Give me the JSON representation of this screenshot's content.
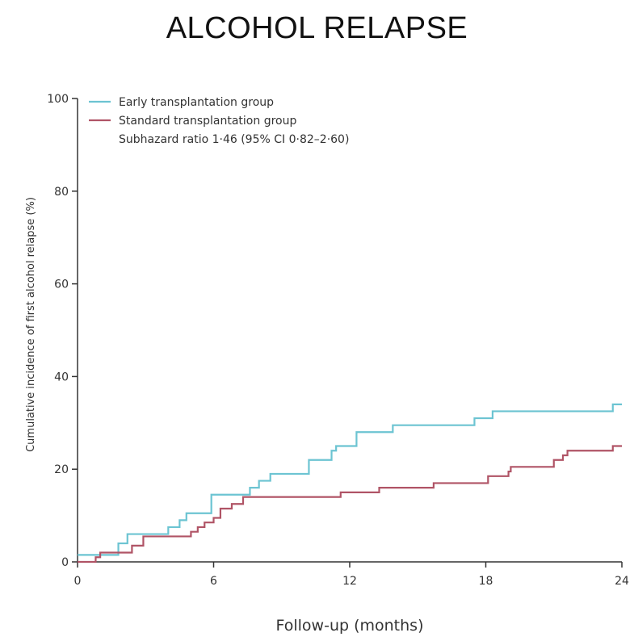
{
  "chart_data": {
    "type": "line",
    "title": "ALCOHOL RELAPSE",
    "xlabel": "Follow-up (months)",
    "ylabel": "Cumulative incidence of first alcohol relapse (%)",
    "xlim": [
      0,
      24
    ],
    "ylim": [
      0,
      100
    ],
    "x_ticks": [
      "0",
      "6",
      "12",
      "18",
      "24"
    ],
    "y_ticks": [
      "0",
      "20",
      "40",
      "60",
      "80",
      "100"
    ],
    "grid": false,
    "legend_position": "top-left",
    "annotation": "Subhazard ratio 1·46 (95% CI 0·82–2·60)",
    "series": [
      {
        "name": "Early transplantation group",
        "color": "#6cc4d2",
        "step": true,
        "points": [
          [
            0,
            1.5
          ],
          [
            1.8,
            1.5
          ],
          [
            1.8,
            4
          ],
          [
            2.2,
            6
          ],
          [
            3.9,
            6
          ],
          [
            4,
            7.5
          ],
          [
            4.4,
            7.5
          ],
          [
            4.5,
            9
          ],
          [
            4.8,
            10.5
          ],
          [
            5.8,
            10.5
          ],
          [
            5.9,
            14.5
          ],
          [
            7.5,
            14.5
          ],
          [
            7.6,
            16
          ],
          [
            7.9,
            16
          ],
          [
            8.0,
            17.5
          ],
          [
            8.4,
            17.5
          ],
          [
            8.5,
            19
          ],
          [
            10,
            19
          ],
          [
            10.2,
            22
          ],
          [
            11.0,
            22
          ],
          [
            11.2,
            24
          ],
          [
            11.4,
            25
          ],
          [
            11.9,
            25
          ],
          [
            12.3,
            28
          ],
          [
            13.8,
            28
          ],
          [
            13.9,
            29.5
          ],
          [
            17.3,
            29.5
          ],
          [
            17.5,
            31
          ],
          [
            18.1,
            31
          ],
          [
            18.3,
            32.5
          ],
          [
            23.5,
            32.5
          ],
          [
            23.6,
            34
          ],
          [
            24,
            34
          ]
        ]
      },
      {
        "name": "Standard transplantation group",
        "color": "#b05466",
        "step": true,
        "points": [
          [
            0,
            0
          ],
          [
            0.7,
            0
          ],
          [
            0.8,
            1
          ],
          [
            1.0,
            2
          ],
          [
            2.3,
            2
          ],
          [
            2.4,
            3.5
          ],
          [
            2.8,
            3.5
          ],
          [
            2.9,
            5.5
          ],
          [
            4.9,
            5.5
          ],
          [
            5.0,
            6.5
          ],
          [
            5.3,
            7.5
          ],
          [
            5.6,
            8.5
          ],
          [
            6.0,
            9.5
          ],
          [
            6.3,
            11.5
          ],
          [
            6.8,
            12.5
          ],
          [
            7.3,
            14
          ],
          [
            11.4,
            14
          ],
          [
            11.6,
            15
          ],
          [
            13.2,
            15
          ],
          [
            13.3,
            16
          ],
          [
            15.6,
            16
          ],
          [
            15.7,
            17
          ],
          [
            18.0,
            17
          ],
          [
            18.1,
            18.5
          ],
          [
            18.9,
            18.5
          ],
          [
            19.0,
            19.5
          ],
          [
            19.1,
            20.5
          ],
          [
            20.6,
            20.5
          ],
          [
            21.0,
            22
          ],
          [
            21.4,
            23
          ],
          [
            21.6,
            24
          ],
          [
            23.5,
            24
          ],
          [
            23.6,
            25
          ],
          [
            24,
            25
          ]
        ]
      }
    ]
  }
}
